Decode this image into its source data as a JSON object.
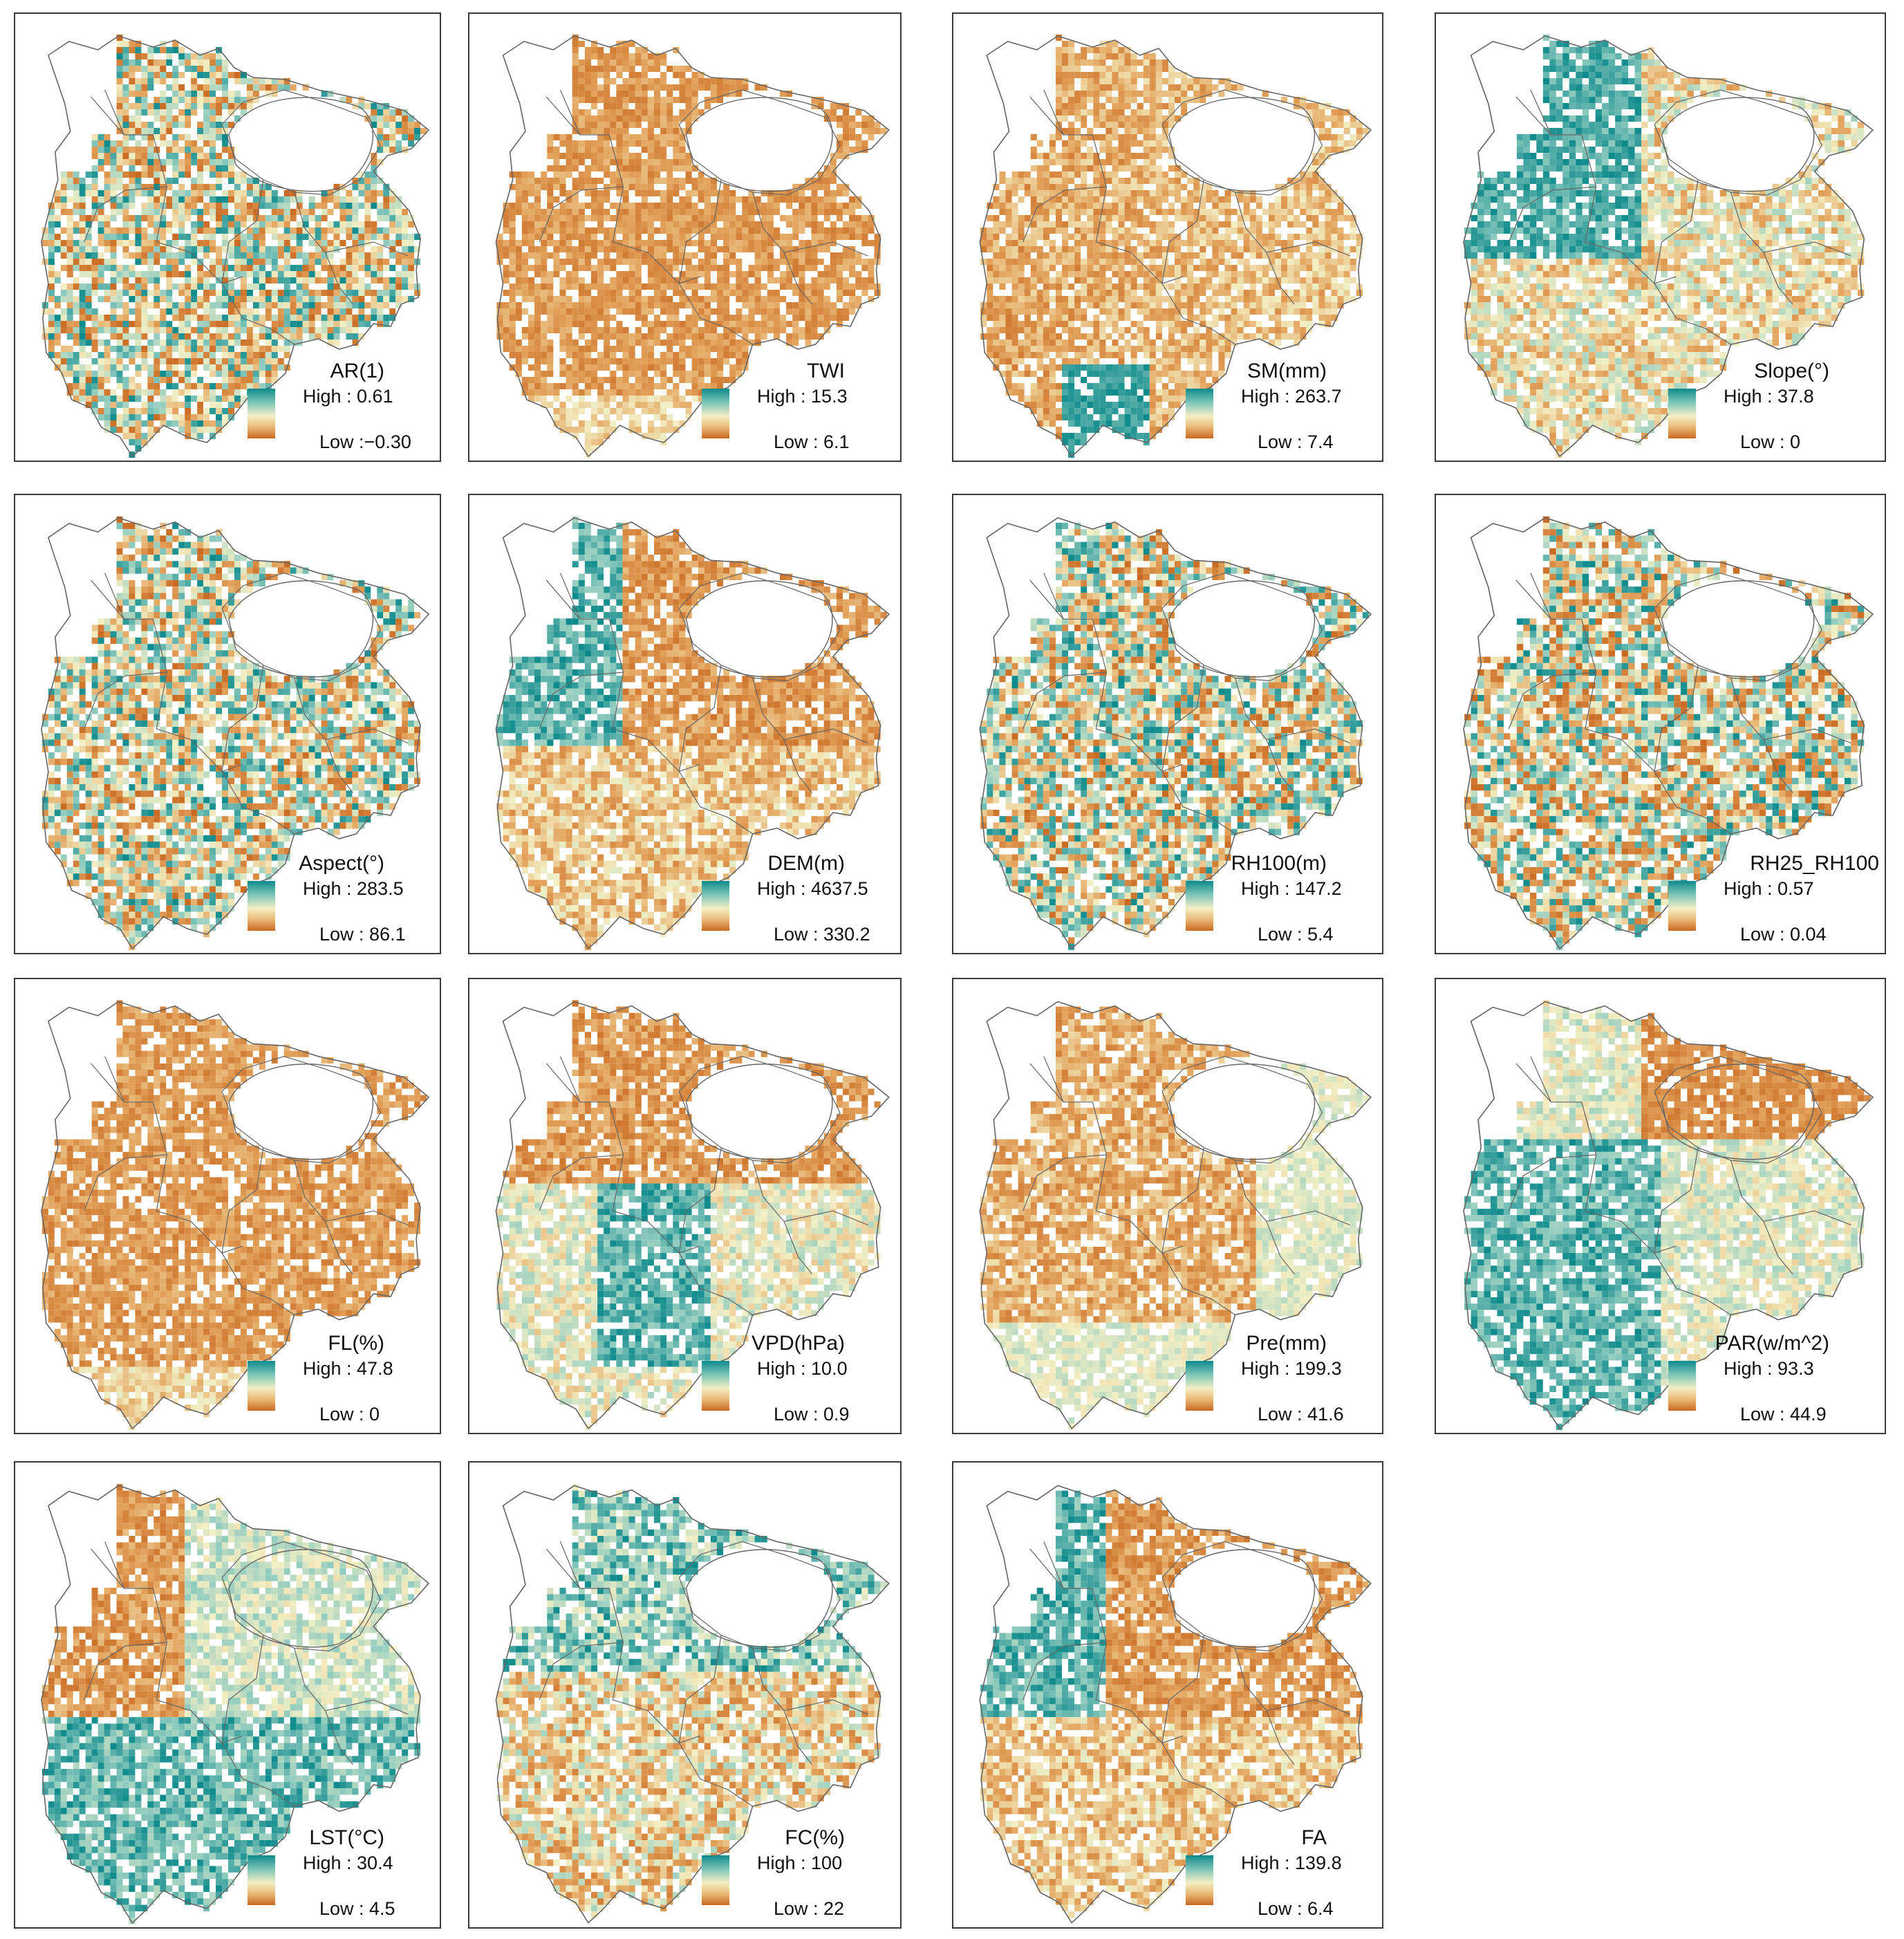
{
  "colors": {
    "high": "#0e8a8c",
    "mid": "#f3efc4",
    "low": "#c96a22",
    "outline": "#666666"
  },
  "panels": [
    {
      "title": "AR(1)",
      "high": "High : 0.61",
      "low": "Low :−0.30",
      "pattern": "mixed"
    },
    {
      "title": "TWI",
      "high": "High : 15.3",
      "low": "Low : 6.1",
      "pattern": "brown"
    },
    {
      "title": "SM(mm)",
      "high": "High : 263.7",
      "low": "Low : 7.4",
      "pattern": "brownsouth"
    },
    {
      "title": "Slope(°)",
      "high": "High : 37.8",
      "low": "Low : 0",
      "pattern": "tealwest"
    },
    {
      "title": "Aspect(°)",
      "high": "High : 283.5",
      "low": "Low : 86.1",
      "pattern": "mixed"
    },
    {
      "title": "DEM(m)",
      "high": "High : 4637.5",
      "low": "Low : 330.2",
      "pattern": "dem"
    },
    {
      "title": "RH100(m)",
      "high": "High : 147.2",
      "low": "Low : 5.4",
      "pattern": "mixed"
    },
    {
      "title": "RH25_RH100",
      "high": "High : 0.57",
      "low": "Low : 0.04",
      "pattern": "mixed"
    },
    {
      "title": "FL(%)",
      "high": "High : 47.8",
      "low": "Low : 0",
      "pattern": "brown"
    },
    {
      "title": "VPD(hPa)",
      "high": "High : 10.0",
      "low": "Low : 0.9",
      "pattern": "vpd"
    },
    {
      "title": "Pre(mm)",
      "high": "High : 199.3",
      "low": "Low : 41.6",
      "pattern": "pre"
    },
    {
      "title": "PAR(w/m^2)",
      "high": "High : 93.3",
      "low": "Low : 44.9",
      "pattern": "par"
    },
    {
      "title": "LST(°C)",
      "high": "High : 30.4",
      "low": "Low : 4.5",
      "pattern": "lst"
    },
    {
      "title": "FC(%)",
      "high": "High : 100",
      "low": "Low : 22",
      "pattern": "fc"
    },
    {
      "title": "FA",
      "high": "High : 139.8",
      "low": "Low : 6.4",
      "pattern": "dem"
    }
  ]
}
